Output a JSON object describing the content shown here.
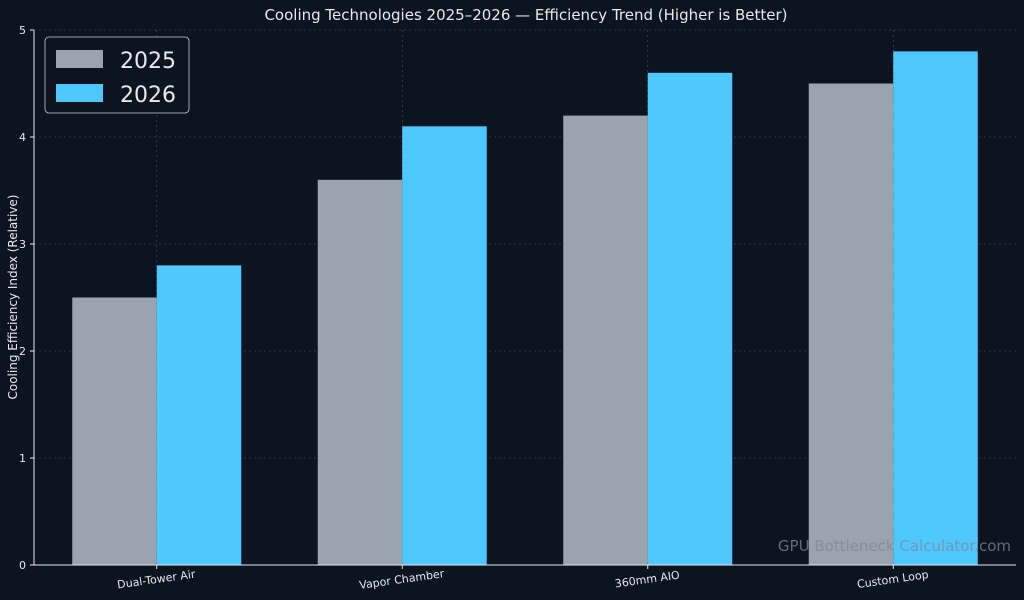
{
  "chart_data": {
    "type": "bar",
    "title": "Cooling Technologies 2025–2026 — Efficiency Trend (Higher is Better)",
    "xlabel": "",
    "ylabel": "Cooling Efficiency Index (Relative)",
    "categories": [
      "Dual-Tower Air",
      "Vapor Chamber",
      "360mm AIO",
      "Custom Loop"
    ],
    "series": [
      {
        "name": "2025",
        "values": [
          2.5,
          3.6,
          4.2,
          4.5
        ],
        "color": "#9aa3ae"
      },
      {
        "name": "2026",
        "values": [
          2.8,
          4.1,
          4.6,
          4.8
        ],
        "color": "#4fc8ff"
      }
    ],
    "ylim": [
      0,
      5
    ],
    "yticks": [
      "0",
      "1",
      "2",
      "3",
      "4",
      "5"
    ],
    "grid": true,
    "legend_position": "top-left",
    "watermark": "GPU Bottleneck Calculator.com"
  }
}
